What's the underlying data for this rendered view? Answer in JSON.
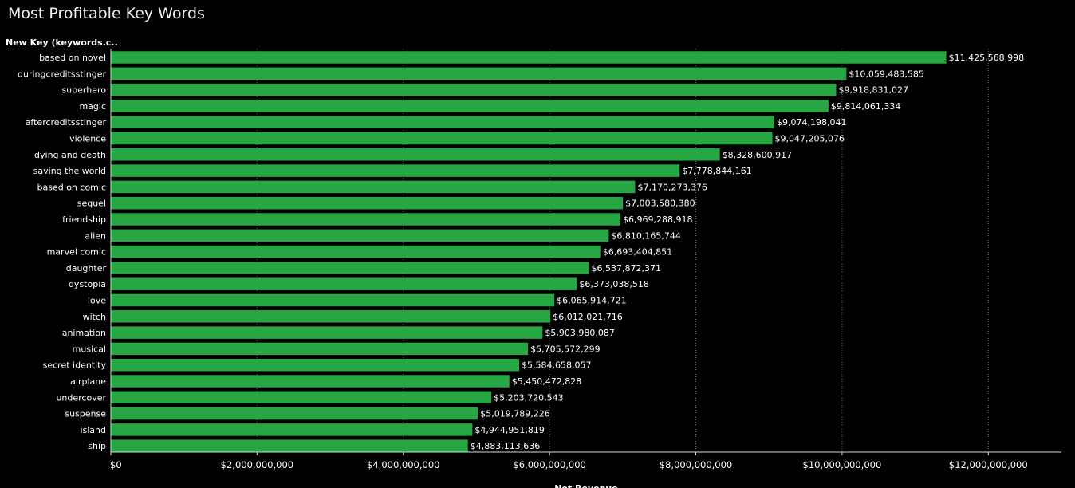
{
  "title": "Most Profitable Key Words",
  "chart_data": {
    "type": "bar",
    "orientation": "horizontal",
    "row_header": "New Key (keywords.c..",
    "xlabel": "Net Revenue",
    "xlim": [
      0,
      13000000000
    ],
    "xticks": [
      0,
      2000000000,
      4000000000,
      6000000000,
      8000000000,
      10000000000,
      12000000000
    ],
    "xtick_labels": [
      "$0",
      "$2,000,000,000",
      "$4,000,000,000",
      "$6,000,000,000",
      "$8,000,000,000",
      "$10,000,000,000",
      "$12,000,000,000"
    ],
    "grid": "vertical dotted",
    "bar_color": "#27a744",
    "categories": [
      "based on novel",
      "duringcreditsstinger",
      "superhero",
      "magic",
      "aftercreditsstinger",
      "violence",
      "dying and death",
      "saving the world",
      "based on comic",
      "sequel",
      "friendship",
      "alien",
      "marvel comic",
      "daughter",
      "dystopia",
      "love",
      "witch",
      "animation",
      "musical",
      "secret identity",
      "airplane",
      "undercover",
      "suspense",
      "island",
      "ship"
    ],
    "values": [
      11425568998,
      10059483585,
      9918831027,
      9814061334,
      9074198041,
      9047205076,
      8328600917,
      7778844161,
      7170273376,
      7003580380,
      6969288918,
      6810165744,
      6693404851,
      6537872371,
      6373038518,
      6065914721,
      6012021716,
      5903980087,
      5705572299,
      5584658057,
      5450472828,
      5203720543,
      5019789226,
      4944951819,
      4883113636
    ],
    "value_labels": [
      "$11,425,568,998",
      "$10,059,483,585",
      "$9,918,831,027",
      "$9,814,061,334",
      "$9,074,198,041",
      "$9,047,205,076",
      "$8,328,600,917",
      "$7,778,844,161",
      "$7,170,273,376",
      "$7,003,580,380",
      "$6,969,288,918",
      "$6,810,165,744",
      "$6,693,404,851",
      "$6,537,872,371",
      "$6,373,038,518",
      "$6,065,914,721",
      "$6,012,021,716",
      "$5,903,980,087",
      "$5,705,572,299",
      "$5,584,658,057",
      "$5,450,472,828",
      "$5,203,720,543",
      "$5,019,789,226",
      "$4,944,951,819",
      "$4,883,113,636"
    ]
  }
}
